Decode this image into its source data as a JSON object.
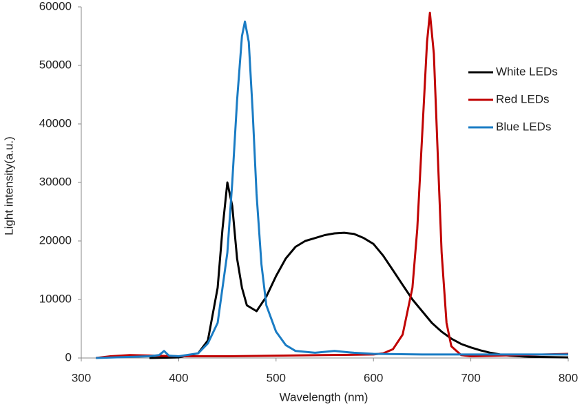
{
  "chart_data": {
    "type": "line",
    "x_label": "Wavelength (nm)",
    "y_label": "Light intensity(a.u.)",
    "xlim": [
      300,
      800
    ],
    "xticks": [
      300,
      400,
      500,
      600,
      700,
      800
    ],
    "ylim": [
      0,
      60000
    ],
    "yticks": [
      0,
      10000,
      20000,
      30000,
      40000,
      50000,
      60000
    ],
    "grid": false,
    "legend": "right",
    "series": [
      {
        "name": "White LEDs",
        "color": "#000000",
        "x": [
          370,
          400,
          420,
          430,
          440,
          445,
          450,
          455,
          460,
          465,
          470,
          480,
          490,
          500,
          510,
          520,
          530,
          540,
          550,
          560,
          570,
          580,
          590,
          600,
          610,
          620,
          630,
          640,
          650,
          660,
          670,
          680,
          690,
          700,
          710,
          720,
          730,
          740,
          760,
          800
        ],
        "values": [
          0,
          100,
          800,
          3000,
          12000,
          22000,
          30000,
          26000,
          17000,
          12000,
          9000,
          8000,
          10500,
          14000,
          17000,
          19000,
          20000,
          20500,
          21000,
          21300,
          21400,
          21200,
          20500,
          19500,
          17500,
          15000,
          12500,
          10000,
          8000,
          6000,
          4500,
          3300,
          2400,
          1800,
          1300,
          900,
          600,
          400,
          200,
          100
        ]
      },
      {
        "name": "Red LEDs",
        "color": "#c00000",
        "x": [
          315,
          330,
          350,
          400,
          450,
          500,
          550,
          600,
          610,
          620,
          630,
          640,
          645,
          650,
          655,
          658,
          662,
          666,
          670,
          675,
          680,
          690,
          700,
          750,
          800
        ],
        "values": [
          0,
          300,
          500,
          300,
          300,
          400,
          500,
          600,
          800,
          1500,
          4000,
          12000,
          22000,
          38000,
          54000,
          59000,
          52000,
          35000,
          18000,
          6000,
          2000,
          500,
          300,
          500,
          700
        ]
      },
      {
        "name": "Blue LEDs",
        "color": "#1a7cc4",
        "x": [
          315,
          370,
          380,
          385,
          390,
          400,
          420,
          430,
          440,
          450,
          455,
          460,
          465,
          468,
          472,
          476,
          480,
          485,
          490,
          500,
          510,
          520,
          540,
          560,
          580,
          600,
          650,
          700,
          800
        ],
        "values": [
          0,
          300,
          500,
          1200,
          400,
          300,
          800,
          2500,
          6000,
          18000,
          30000,
          44000,
          55000,
          57500,
          54000,
          42000,
          28000,
          16000,
          9000,
          4500,
          2200,
          1200,
          900,
          1200,
          900,
          700,
          600,
          600,
          600
        ]
      }
    ]
  }
}
